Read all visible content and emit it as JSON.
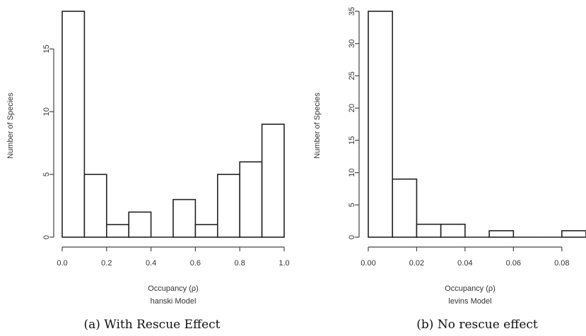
{
  "chart_data": [
    {
      "type": "bar",
      "subtype": "histogram",
      "bin_edges": [
        0.0,
        0.1,
        0.2,
        0.3,
        0.4,
        0.5,
        0.6,
        0.7,
        0.8,
        0.9,
        1.0
      ],
      "values": [
        18,
        5,
        1,
        2,
        0,
        3,
        1,
        5,
        6,
        9
      ],
      "xlabel": "Occupancy (ρ)",
      "model_label": "hanski Model",
      "ylabel": "Number of Species",
      "xlim": [
        0,
        1
      ],
      "ylim": [
        0,
        18
      ],
      "xticks": [
        "0.0",
        "0.2",
        "0.4",
        "0.6",
        "0.8",
        "1.0"
      ],
      "xtick_values": [
        0,
        0.2,
        0.4,
        0.6,
        0.8,
        1.0
      ],
      "yticks": [
        "0",
        "5",
        "10",
        "15"
      ],
      "ytick_values": [
        0,
        5,
        10,
        15
      ],
      "caption": "(a) With Rescue Effect",
      "grid": false
    },
    {
      "type": "bar",
      "subtype": "histogram",
      "bin_edges": [
        0.0,
        0.01,
        0.02,
        0.03,
        0.04,
        0.05,
        0.06,
        0.07,
        0.08,
        0.09
      ],
      "values": [
        35,
        9,
        2,
        2,
        0,
        1,
        0,
        0,
        1
      ],
      "xlabel": "Occupancy (ρ)",
      "model_label": "levins Model",
      "ylabel": "Number of Species",
      "xlim": [
        0,
        0.09
      ],
      "ylim": [
        0,
        35
      ],
      "xticks": [
        "0.00",
        "0.02",
        "0.04",
        "0.06",
        "0.08"
      ],
      "xtick_values": [
        0,
        0.02,
        0.04,
        0.06,
        0.08
      ],
      "yticks": [
        "0",
        "5",
        "10",
        "15",
        "20",
        "25",
        "30",
        "35"
      ],
      "ytick_values": [
        0,
        5,
        10,
        15,
        20,
        25,
        30,
        35
      ],
      "caption": "(b) No rescue effect",
      "grid": false
    }
  ]
}
